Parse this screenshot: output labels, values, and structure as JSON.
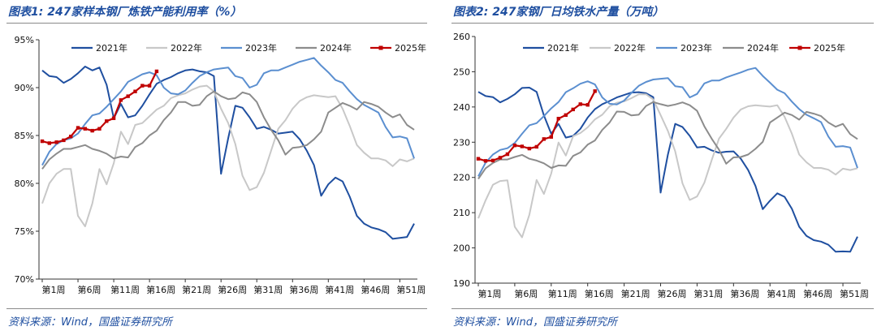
{
  "source_text": "资料来源：Wind，国盛证券研究所",
  "colors": {
    "y2021": "#1f4fa0",
    "y2022": "#c8c8c8",
    "y2023": "#5b8fd0",
    "y2024": "#8c8c8c",
    "y2025": "#c00000",
    "title": "#1f4fa0"
  },
  "chart_data": [
    {
      "type": "line",
      "title": "图表1:  247家样本钢厂炼铁产能利用率（%）",
      "xlabel": "",
      "ylabel": "",
      "ylim": [
        70,
        95
      ],
      "yticks": [
        "70%",
        "75%",
        "80%",
        "85%",
        "90%",
        "95%"
      ],
      "xticks": [
        "第1周",
        "第6周",
        "第11周",
        "第16周",
        "第21周",
        "第26周",
        "第31周",
        "第36周",
        "第41周",
        "第46周",
        "第51周"
      ],
      "series": [
        {
          "name": "2021年",
          "color": "#1f4fa0",
          "marker": false,
          "values": [
            91.8,
            91.2,
            91.1,
            90.5,
            90.9,
            91.5,
            92.2,
            91.8,
            92.1,
            90.3,
            86.8,
            88.3,
            86.9,
            87.1,
            88.1,
            89.3,
            90.4,
            90.8,
            91.1,
            91.5,
            91.8,
            91.9,
            91.7,
            91.6,
            91.2,
            81.0,
            84.7,
            88.1,
            87.9,
            86.9,
            85.7,
            85.9,
            85.6,
            85.2,
            85.3,
            85.4,
            84.6,
            83.4,
            81.9,
            78.7,
            79.9,
            80.6,
            80.2,
            78.6,
            76.6,
            75.8,
            75.4,
            75.2,
            74.9,
            74.2,
            74.3,
            74.4,
            75.8
          ]
        },
        {
          "name": "2022年",
          "color": "#c8c8c8",
          "marker": false,
          "values": [
            77.9,
            80.0,
            81.0,
            81.5,
            81.5,
            76.6,
            75.5,
            77.9,
            81.5,
            79.9,
            82.1,
            85.4,
            84.1,
            86.1,
            86.3,
            87.0,
            87.7,
            88.1,
            88.9,
            89.2,
            89.4,
            89.8,
            90.1,
            90.2,
            89.6,
            87.8,
            86.3,
            84.1,
            80.8,
            79.3,
            79.6,
            81.1,
            83.4,
            85.7,
            86.6,
            87.8,
            88.6,
            89.0,
            89.2,
            89.1,
            89.0,
            89.1,
            87.8,
            86.0,
            84.0,
            83.2,
            82.6,
            82.6,
            82.4,
            81.8,
            82.5,
            82.3,
            82.6
          ]
        },
        {
          "name": "2023年",
          "color": "#5b8fd0",
          "marker": false,
          "values": [
            81.9,
            83.3,
            84.1,
            84.5,
            84.7,
            85.2,
            86.2,
            87.1,
            87.3,
            88.0,
            88.8,
            89.6,
            90.6,
            91.0,
            91.4,
            91.6,
            91.3,
            90.0,
            89.4,
            89.3,
            89.7,
            90.5,
            91.2,
            91.6,
            91.9,
            92.0,
            92.1,
            91.2,
            91.0,
            90.0,
            90.3,
            91.5,
            91.8,
            91.8,
            92.1,
            92.4,
            92.7,
            92.9,
            93.1,
            92.3,
            91.6,
            90.8,
            90.5,
            89.6,
            88.8,
            88.2,
            87.8,
            87.4,
            85.9,
            84.8,
            84.9,
            84.7,
            82.6
          ]
        },
        {
          "name": "2024年",
          "color": "#8c8c8c",
          "marker": false,
          "values": [
            81.5,
            82.5,
            83.1,
            83.6,
            83.6,
            83.8,
            84.0,
            83.6,
            83.4,
            83.1,
            82.6,
            82.8,
            82.7,
            83.8,
            84.2,
            85.0,
            85.5,
            86.6,
            87.4,
            88.5,
            88.5,
            88.1,
            88.2,
            89.1,
            89.6,
            89.1,
            88.8,
            88.9,
            89.5,
            89.3,
            88.5,
            86.9,
            85.6,
            84.5,
            83.0,
            83.7,
            83.8,
            84.0,
            84.6,
            85.4,
            87.4,
            87.9,
            88.4,
            88.1,
            87.7,
            88.5,
            88.3,
            88.0,
            87.4,
            86.9,
            87.2,
            86.1,
            85.6
          ]
        },
        {
          "name": "2025年",
          "color": "#c00000",
          "marker": true,
          "values": [
            84.4,
            84.2,
            84.3,
            84.5,
            84.9,
            85.8,
            85.7,
            85.5,
            85.7,
            86.5,
            86.8,
            88.7,
            89.1,
            89.6,
            90.2,
            90.2,
            91.7
          ]
        }
      ]
    },
    {
      "type": "line",
      "title": "图表2:  247家钢厂日均铁水产量（万吨）",
      "xlabel": "",
      "ylabel": "",
      "ylim": [
        190,
        260
      ],
      "yticks": [
        "190",
        "200",
        "210",
        "220",
        "230",
        "240",
        "250",
        "260"
      ],
      "xticks": [
        "第1周",
        "第6周",
        "第11周",
        "第16周",
        "第21周",
        "第26周",
        "第31周",
        "第36周",
        "第41周",
        "第46周",
        "第51周"
      ],
      "series": [
        {
          "name": "2021年",
          "color": "#1f4fa0",
          "marker": false,
          "values": [
            244.3,
            243.1,
            242.8,
            241.3,
            242.3,
            243.6,
            245.4,
            245.5,
            244.3,
            237.6,
            232.4,
            235.2,
            231.3,
            231.8,
            233.8,
            237.0,
            239.4,
            240.8,
            241.7,
            242.7,
            243.4,
            244.1,
            244.2,
            243.9,
            242.8,
            215.7,
            226.5,
            235.2,
            234.3,
            231.8,
            228.5,
            228.7,
            227.7,
            227.0,
            227.3,
            227.4,
            225.3,
            222.1,
            217.6,
            211.0,
            213.4,
            215.5,
            214.5,
            211.1,
            206.0,
            203.4,
            202.2,
            201.8,
            200.9,
            198.9,
            199.0,
            198.9,
            203.2
          ]
        },
        {
          "name": "2022年",
          "color": "#c8c8c8",
          "marker": false,
          "values": [
            208.4,
            213.5,
            217.9,
            219.0,
            219.2,
            206.0,
            203.0,
            209.4,
            219.3,
            215.3,
            221.1,
            229.9,
            226.2,
            231.7,
            232.6,
            234.2,
            236.5,
            237.8,
            240.2,
            241.2,
            241.6,
            242.5,
            243.6,
            243.6,
            242.1,
            237.7,
            233.2,
            227.4,
            218.3,
            213.6,
            214.6,
            218.5,
            224.9,
            231.0,
            233.8,
            237.0,
            239.3,
            240.2,
            240.5,
            240.3,
            240.1,
            240.5,
            237.2,
            232.4,
            226.5,
            224.3,
            222.7,
            222.7,
            222.2,
            220.8,
            222.5,
            222.1,
            222.6
          ]
        },
        {
          "name": "2023年",
          "color": "#5b8fd0",
          "marker": false,
          "values": [
            220.3,
            224.2,
            226.5,
            227.8,
            228.3,
            229.8,
            232.4,
            234.8,
            235.4,
            237.4,
            239.6,
            241.4,
            244.2,
            245.3,
            246.6,
            247.3,
            246.4,
            242.7,
            240.9,
            240.7,
            241.8,
            244.0,
            246.0,
            247.1,
            247.8,
            248.0,
            248.2,
            245.9,
            245.6,
            242.7,
            243.7,
            246.7,
            247.5,
            247.5,
            248.4,
            249.1,
            249.8,
            250.6,
            251.1,
            248.8,
            246.9,
            244.9,
            243.9,
            241.5,
            239.4,
            237.8,
            236.8,
            235.7,
            231.6,
            228.7,
            228.9,
            228.5,
            222.7
          ]
        },
        {
          "name": "2024年",
          "color": "#8c8c8c",
          "marker": false,
          "values": [
            219.6,
            222.6,
            224.1,
            225.1,
            225.1,
            225.8,
            226.4,
            225.3,
            224.8,
            224.0,
            222.7,
            223.4,
            223.3,
            226.1,
            227.1,
            229.3,
            230.5,
            233.5,
            235.6,
            238.7,
            238.6,
            237.6,
            237.8,
            240.3,
            241.4,
            240.8,
            240.3,
            240.7,
            241.3,
            240.5,
            238.9,
            234.5,
            231.0,
            227.9,
            223.9,
            225.7,
            225.8,
            226.5,
            228.1,
            230.1,
            235.6,
            237.0,
            238.4,
            237.7,
            236.4,
            238.6,
            238.1,
            237.4,
            235.6,
            234.4,
            235.2,
            232.3,
            230.9
          ]
        },
        {
          "name": "2025年",
          "color": "#c00000",
          "marker": true,
          "values": [
            225.3,
            224.7,
            224.8,
            225.6,
            226.6,
            229.1,
            228.8,
            228.2,
            228.7,
            230.9,
            231.5,
            236.7,
            237.7,
            239.3,
            240.8,
            240.6,
            244.5
          ]
        }
      ]
    }
  ]
}
